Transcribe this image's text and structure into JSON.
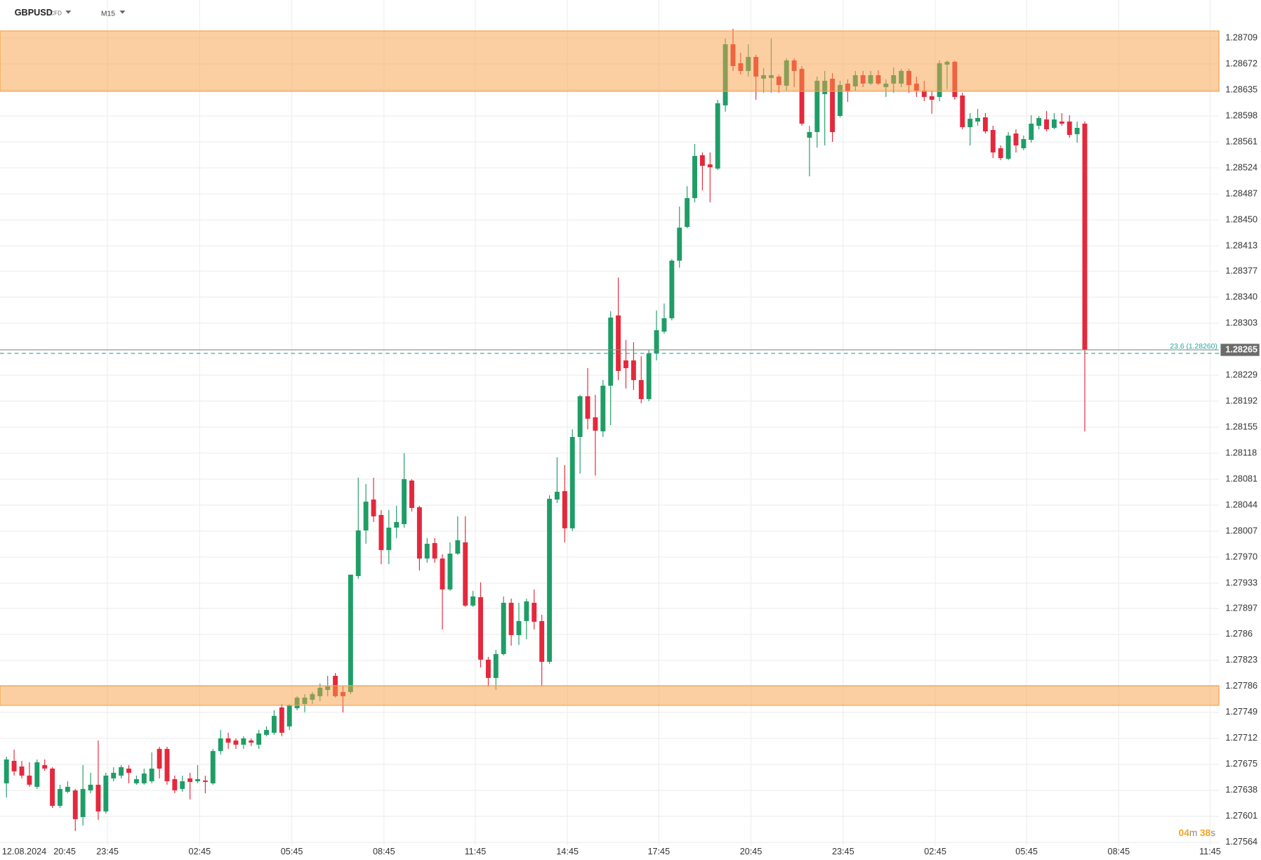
{
  "header": {
    "symbol": "GBPUSD",
    "symbol_type": "CFD",
    "timeframe": "M15"
  },
  "chart_data": {
    "type": "candlestick",
    "up_color": "#1f9d67",
    "down_color": "#e5283c",
    "grid": true,
    "ylim": [
      1.27555,
      1.28763
    ],
    "yticks": [
      1.28709,
      1.28672,
      1.28635,
      1.28598,
      1.28561,
      1.28524,
      1.28487,
      {
        "value": 1.2845,
        "label": "1.28450"
      },
      1.28413,
      1.28377,
      {
        "value": 1.2834,
        "label": "1.28340"
      },
      1.28303,
      1.28229,
      1.28192,
      1.28155,
      1.28118,
      1.28081,
      1.28044,
      1.28007,
      {
        "value": 1.2797,
        "label": "1.27970"
      },
      1.27933,
      1.27897,
      1.2786,
      1.27823,
      1.27786,
      1.27749,
      1.27712,
      1.27675,
      1.27638,
      1.27601,
      1.27564
    ],
    "yticks_note_free": null,
    "x_axis_labels": [
      "12.08.2024",
      "20:45",
      "23:45",
      "02:45",
      "05:45",
      "08:45",
      "11:45",
      "14:45",
      "17:45",
      "20:45",
      "23:45",
      "02:45",
      "05:45",
      "08:45",
      "11:45"
    ],
    "zones": [
      {
        "from": 1.28633,
        "to": 1.28719,
        "color": "#f7a046"
      },
      {
        "from": 1.27759,
        "to": 1.27787,
        "color": "#f7a046"
      }
    ],
    "current_price": 1.28265,
    "fib_level": {
      "value": 1.2826,
      "label": "23.6 (1.28260)",
      "color": "#26a69a"
    },
    "countdown": {
      "minutes": "04",
      "minutes_unit": "m",
      "seconds": "38",
      "seconds_unit": "s"
    },
    "candles": [
      [
        1.27648,
        1.27686,
        1.27628,
        1.27682
      ],
      [
        1.2768,
        1.27696,
        1.27659,
        1.27665
      ],
      [
        1.27672,
        1.2768,
        1.27655,
        1.27659
      ],
      [
        1.27659,
        1.27678,
        1.27643,
        1.27646
      ],
      [
        1.27643,
        1.27682,
        1.2764,
        1.27678
      ],
      [
        1.27674,
        1.27682,
        1.27666,
        1.27669
      ],
      [
        1.27669,
        1.27671,
        1.27613,
        1.27616
      ],
      [
        1.27616,
        1.27646,
        1.27613,
        1.2764
      ],
      [
        1.27636,
        1.27651,
        1.27634,
        1.27643
      ],
      [
        1.27638,
        1.2764,
        1.2758,
        1.27597
      ],
      [
        1.276,
        1.27674,
        1.27588,
        1.2764
      ],
      [
        1.27638,
        1.27663,
        1.27634,
        1.27646
      ],
      [
        1.27646,
        1.27709,
        1.27596,
        1.27608
      ],
      [
        1.27608,
        1.27663,
        1.27605,
        1.27659
      ],
      [
        1.27655,
        1.27671,
        1.27651,
        1.27663
      ],
      [
        1.27659,
        1.27674,
        1.27655,
        1.27671
      ],
      [
        1.27669,
        1.27674,
        1.27648,
        1.27663
      ],
      [
        1.27648,
        1.27659,
        1.27646,
        1.27654
      ],
      [
        1.27648,
        1.27669,
        1.27646,
        1.27662
      ],
      [
        1.27651,
        1.27692,
        1.27648,
        1.27669
      ],
      [
        1.27697,
        1.277,
        1.27655,
        1.27669
      ],
      [
        1.27697,
        1.277,
        1.27646,
        1.27651
      ],
      [
        1.27654,
        1.27659,
        1.27634,
        1.27638
      ],
      [
        1.2764,
        1.27659,
        1.27636,
        1.27651
      ],
      [
        1.27655,
        1.27663,
        1.27625,
        1.2765
      ],
      [
        1.27651,
        1.27674,
        1.27648,
        1.27654
      ],
      [
        1.27652,
        1.27659,
        1.27634,
        1.2765
      ],
      [
        1.27648,
        1.27697,
        1.27646,
        1.27694
      ],
      [
        1.27694,
        1.27724,
        1.27689,
        1.27712
      ],
      [
        1.27712,
        1.2772,
        1.27697,
        1.27706
      ],
      [
        1.27709,
        1.27712,
        1.27697,
        1.27703
      ],
      [
        1.27703,
        1.27715,
        1.27697,
        1.27712
      ],
      [
        1.27709,
        1.27712,
        1.27701,
        1.27706
      ],
      [
        1.27703,
        1.27724,
        1.27697,
        1.27719
      ],
      [
        1.27717,
        1.27729,
        1.27715,
        1.27724
      ],
      [
        1.2772,
        1.27752,
        1.27717,
        1.27744
      ],
      [
        1.27756,
        1.27761,
        1.27715,
        1.2772
      ],
      [
        1.27729,
        1.27761,
        1.27724,
        1.27759
      ],
      [
        1.27755,
        1.27772,
        1.27752,
        1.2777
      ],
      [
        1.27761,
        1.27775,
        1.27749,
        1.2777
      ],
      [
        1.27767,
        1.27778,
        1.27761,
        1.27775
      ],
      [
        1.27772,
        1.2779,
        1.27765,
        1.27784
      ],
      [
        1.27781,
        1.27801,
        1.27772,
        1.27786
      ],
      [
        1.27801,
        1.27805,
        1.2777,
        1.27772
      ],
      [
        1.27778,
        1.27786,
        1.27749,
        1.27772
      ],
      [
        1.27778,
        1.27945,
        1.27775,
        1.27945
      ],
      [
        1.27943,
        1.28083,
        1.27939,
        1.28008
      ],
      [
        1.28008,
        1.28074,
        1.27989,
        1.28049
      ],
      [
        1.28052,
        1.28083,
        1.2802,
        1.28028
      ],
      [
        1.2803,
        1.28037,
        1.2796,
        1.2798
      ],
      [
        1.2798,
        1.28037,
        1.2796,
        1.28012
      ],
      [
        1.28012,
        1.28043,
        1.27997,
        1.2802
      ],
      [
        1.28017,
        1.28118,
        1.28012,
        1.28081
      ],
      [
        1.28079,
        1.28081,
        1.28035,
        1.2804
      ],
      [
        1.28041,
        1.28043,
        1.27951,
        1.27968
      ],
      [
        1.27968,
        1.27997,
        1.27962,
        1.27989
      ],
      [
        1.2799,
        1.27997,
        1.27962,
        1.27968
      ],
      [
        1.27968,
        1.27974,
        1.27867,
        1.27924
      ],
      [
        1.27924,
        1.27991,
        1.27922,
        1.27975
      ],
      [
        1.27975,
        1.28028,
        1.27973,
        1.27994
      ],
      [
        1.27991,
        1.28028,
        1.27899,
        1.27901
      ],
      [
        1.27901,
        1.27922,
        1.27899,
        1.27914
      ],
      [
        1.27913,
        1.27934,
        1.27813,
        1.27824
      ],
      [
        1.27824,
        1.27828,
        1.27786,
        1.27798
      ],
      [
        1.27798,
        1.27838,
        1.27781,
        1.27832
      ],
      [
        1.27832,
        1.27914,
        1.2783,
        1.27905
      ],
      [
        1.27905,
        1.27911,
        1.27844,
        1.27859
      ],
      [
        1.27859,
        1.27905,
        1.27845,
        1.27879
      ],
      [
        1.27879,
        1.27911,
        1.27853,
        1.27907
      ],
      [
        1.27905,
        1.27924,
        1.27867,
        1.27878
      ],
      [
        1.27879,
        1.27888,
        1.27786,
        1.27821
      ],
      [
        1.27821,
        1.28058,
        1.27818,
        1.28053
      ],
      [
        1.28052,
        1.28112,
        1.28047,
        1.28063
      ],
      [
        1.28064,
        1.28101,
        1.27991,
        1.28011
      ],
      [
        1.28011,
        1.28152,
        1.28007,
        1.28141
      ],
      [
        1.28141,
        1.28201,
        1.28089,
        1.28199
      ],
      [
        1.28199,
        1.28239,
        1.28152,
        1.28167
      ],
      [
        1.28169,
        1.28201,
        1.28086,
        1.2815
      ],
      [
        1.28149,
        1.28222,
        1.28141,
        1.28214
      ],
      [
        1.28214,
        1.2832,
        1.28158,
        1.28311
      ],
      [
        1.28314,
        1.28368,
        1.28222,
        1.28235
      ],
      [
        1.2825,
        1.28279,
        1.2821,
        1.28239
      ],
      [
        1.2825,
        1.28276,
        1.28208,
        1.28222
      ],
      [
        1.28222,
        1.28256,
        1.28189,
        1.28195
      ],
      [
        1.28195,
        1.28265,
        1.28192,
        1.2826
      ],
      [
        1.2826,
        1.28321,
        1.2825,
        1.28293
      ],
      [
        1.28291,
        1.28331,
        1.28288,
        1.2831
      ],
      [
        1.2831,
        1.28394,
        1.28307,
        1.28392
      ],
      [
        1.28392,
        1.28469,
        1.28382,
        1.28439
      ],
      [
        1.2844,
        1.28498,
        1.28438,
        1.28481
      ],
      [
        1.28481,
        1.28558,
        1.28475,
        1.28541
      ],
      [
        1.28542,
        1.28546,
        1.28492,
        1.28527
      ],
      [
        1.28529,
        1.28546,
        1.28475,
        1.28525
      ],
      [
        1.28523,
        1.28621,
        1.28521,
        1.28616
      ],
      [
        1.28613,
        1.28708,
        1.28604,
        1.287
      ],
      [
        1.287,
        1.28722,
        1.28662,
        1.28669
      ],
      [
        1.28673,
        1.28688,
        1.28657,
        1.28662
      ],
      [
        1.28662,
        1.287,
        1.28654,
        1.28682
      ],
      [
        1.28682,
        1.28685,
        1.28621,
        1.28654
      ],
      [
        1.28651,
        1.28666,
        1.28631,
        1.28656
      ],
      [
        1.28652,
        1.28708,
        1.28631,
        1.28656
      ],
      [
        1.28654,
        1.28657,
        1.28631,
        1.28642
      ],
      [
        1.28641,
        1.2868,
        1.28634,
        1.28677
      ],
      [
        1.28677,
        1.2868,
        1.28639,
        1.28662
      ],
      [
        1.28665,
        1.28669,
        1.28584,
        1.28587
      ],
      [
        1.28567,
        1.28584,
        1.28512,
        1.28575
      ],
      [
        1.28575,
        1.28654,
        1.28553,
        1.28648
      ],
      [
        1.28629,
        1.28662,
        1.28556,
        1.28648
      ],
      [
        1.28651,
        1.28659,
        1.28561,
        1.28575
      ],
      [
        1.28598,
        1.28648,
        1.28596,
        1.28642
      ],
      [
        1.28644,
        1.2865,
        1.28618,
        1.28633
      ],
      [
        1.2864,
        1.28662,
        1.28634,
        1.28656
      ],
      [
        1.28656,
        1.28662,
        1.28639,
        1.28644
      ],
      [
        1.28644,
        1.28662,
        1.28642,
        1.28656
      ],
      [
        1.28656,
        1.28663,
        1.28642,
        1.28644
      ],
      [
        1.28639,
        1.2865,
        1.28625,
        1.28644
      ],
      [
        1.28644,
        1.28667,
        1.28631,
        1.28656
      ],
      [
        1.28644,
        1.28665,
        1.28639,
        1.28662
      ],
      [
        1.28662,
        1.28665,
        1.28631,
        1.28642
      ],
      [
        1.28644,
        1.28654,
        1.28625,
        1.28634
      ],
      [
        1.28634,
        1.28648,
        1.28619,
        1.28625
      ],
      [
        1.28626,
        1.28634,
        1.28601,
        1.28621
      ],
      [
        1.28625,
        1.28677,
        1.28619,
        1.28673
      ],
      [
        1.28671,
        1.28677,
        1.28636,
        1.28675
      ],
      [
        1.28675,
        1.28677,
        1.28621,
        1.28625
      ],
      [
        1.28627,
        1.28631,
        1.28579,
        1.28582
      ],
      [
        1.28582,
        1.28602,
        1.28556,
        1.28594
      ],
      [
        1.2859,
        1.28608,
        1.28584,
        1.28595
      ],
      [
        1.28596,
        1.28602,
        1.28573,
        1.28576
      ],
      [
        1.28578,
        1.28584,
        1.28538,
        1.28546
      ],
      [
        1.28552,
        1.28556,
        1.28535,
        1.28538
      ],
      [
        1.28537,
        1.28575,
        1.28535,
        1.2857
      ],
      [
        1.28573,
        1.28579,
        1.28546,
        1.28556
      ],
      [
        1.28552,
        1.2857,
        1.28549,
        1.28565
      ],
      [
        1.28564,
        1.28599,
        1.2856,
        1.28587
      ],
      [
        1.28584,
        1.28598,
        1.28579,
        1.28595
      ],
      [
        1.28593,
        1.28605,
        1.28576,
        1.28579
      ],
      [
        1.28581,
        1.28602,
        1.28579,
        1.28593
      ],
      [
        1.2859,
        1.28602,
        1.28584,
        1.28587
      ],
      [
        1.2859,
        1.28599,
        1.28567,
        1.28571
      ],
      [
        1.28572,
        1.2859,
        1.2856,
        1.28581
      ],
      [
        1.28587,
        1.2859,
        1.28149,
        1.28265
      ]
    ]
  }
}
